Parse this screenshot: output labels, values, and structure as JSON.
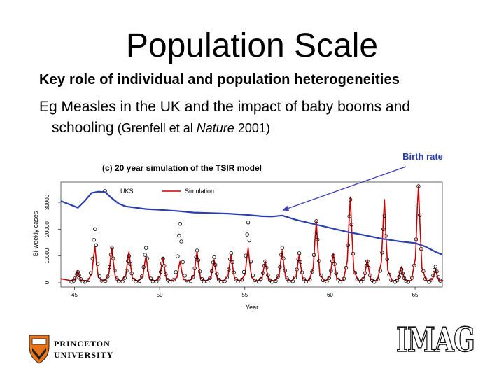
{
  "slide": {
    "title": "Population Scale",
    "bullet1": "Key role of individual and population heterogeneities",
    "bullet2_a": "Eg Measles in the UK and the impact of baby booms and",
    "bullet2_b": "schooling",
    "bullet2_cite_a": " (Grenfell et al ",
    "bullet2_cite_journal": "Nature",
    "bullet2_cite_b": " 2001)"
  },
  "logos": {
    "princeton_line1": "PRINCETON",
    "princeton_line2": "UNIVERSITY",
    "imag": "IMAG"
  },
  "colors": {
    "simulation": "#cc0000",
    "birth_rate": "#2b3fae",
    "arrow": "#3b3fb5",
    "annotation": "#2b3fae"
  },
  "chart_data": {
    "type": "line",
    "title": "(c) 20 year simulation of the TSIR model",
    "xlabel": "Year",
    "ylabel": "Bi-weekly cases",
    "xlim": [
      44.2,
      66.6
    ],
    "ylim": [
      0,
      36000
    ],
    "x_ticks": [
      45,
      50,
      55,
      60,
      65
    ],
    "x_tick_labels": [
      "45",
      "50",
      "55",
      "60",
      "65"
    ],
    "y_ticks": [
      0,
      10000,
      20000,
      30000
    ],
    "y_tick_labels": [
      "0",
      "10000",
      "20000",
      "30000"
    ],
    "legend": {
      "placement": "top-left",
      "entries": [
        "UKS",
        "Simulation"
      ]
    },
    "annotation": {
      "text": "Birth rate",
      "target_x": 57.2,
      "target_y": 27000
    },
    "series": [
      {
        "name": "Simulation",
        "style": "line",
        "peaks": [
          {
            "x": 45.2,
            "y": 4500
          },
          {
            "x": 46.2,
            "y": 13500
          },
          {
            "x": 47.2,
            "y": 13000
          },
          {
            "x": 48.2,
            "y": 11500
          },
          {
            "x": 49.2,
            "y": 10000
          },
          {
            "x": 50.2,
            "y": 9500
          },
          {
            "x": 51.2,
            "y": 8000
          },
          {
            "x": 52.2,
            "y": 11500
          },
          {
            "x": 53.2,
            "y": 8500
          },
          {
            "x": 54.2,
            "y": 10500
          },
          {
            "x": 55.2,
            "y": 13000
          },
          {
            "x": 56.2,
            "y": 8000
          },
          {
            "x": 57.2,
            "y": 12000
          },
          {
            "x": 58.2,
            "y": 10500
          },
          {
            "x": 59.2,
            "y": 23000
          },
          {
            "x": 60.2,
            "y": 11000
          },
          {
            "x": 61.2,
            "y": 32000
          },
          {
            "x": 62.2,
            "y": 8500
          },
          {
            "x": 63.2,
            "y": 31000
          },
          {
            "x": 64.2,
            "y": 6000
          },
          {
            "x": 65.2,
            "y": 37000
          },
          {
            "x": 66.2,
            "y": 5000
          }
        ]
      },
      {
        "name": "UKS",
        "style": "points",
        "peaks": [
          {
            "x": 45.2,
            "y": 4000
          },
          {
            "x": 46.2,
            "y": 20000
          },
          {
            "x": 47.2,
            "y": 13000
          },
          {
            "x": 48.2,
            "y": 10000
          },
          {
            "x": 49.2,
            "y": 13000
          },
          {
            "x": 50.2,
            "y": 9000
          },
          {
            "x": 51.2,
            "y": 22000
          },
          {
            "x": 52.2,
            "y": 12000
          },
          {
            "x": 53.2,
            "y": 9500
          },
          {
            "x": 54.2,
            "y": 11000
          },
          {
            "x": 55.2,
            "y": 22500
          },
          {
            "x": 56.2,
            "y": 8000
          },
          {
            "x": 57.2,
            "y": 13000
          },
          {
            "x": 58.2,
            "y": 11000
          },
          {
            "x": 59.2,
            "y": 23000
          },
          {
            "x": 60.2,
            "y": 10000
          },
          {
            "x": 61.2,
            "y": 31000
          },
          {
            "x": 62.2,
            "y": 8000
          },
          {
            "x": 63.2,
            "y": 25000
          },
          {
            "x": 64.2,
            "y": 5000
          },
          {
            "x": 65.2,
            "y": 36000
          },
          {
            "x": 66.2,
            "y": 6000
          }
        ]
      },
      {
        "name": "Birth rate",
        "style": "line",
        "x": [
          44.2,
          44.8,
          45.2,
          45.6,
          46.0,
          46.4,
          46.8,
          47.2,
          47.6,
          48.0,
          48.6,
          49.2,
          50.0,
          51.0,
          52.0,
          53.0,
          54.0,
          55.0,
          56.0,
          56.6,
          57.2,
          58.0,
          59.0,
          60.0,
          61.0,
          62.0,
          63.0,
          64.0,
          65.0,
          65.6,
          66.2,
          66.6
        ],
        "y": [
          30500,
          29000,
          28000,
          30500,
          33500,
          34000,
          33800,
          31500,
          29500,
          28500,
          28000,
          27500,
          27200,
          26800,
          26200,
          26000,
          25800,
          25400,
          24800,
          24700,
          25100,
          23500,
          22000,
          20500,
          19000,
          17800,
          16500,
          15500,
          14800,
          13500,
          11500,
          10500
        ]
      }
    ]
  }
}
